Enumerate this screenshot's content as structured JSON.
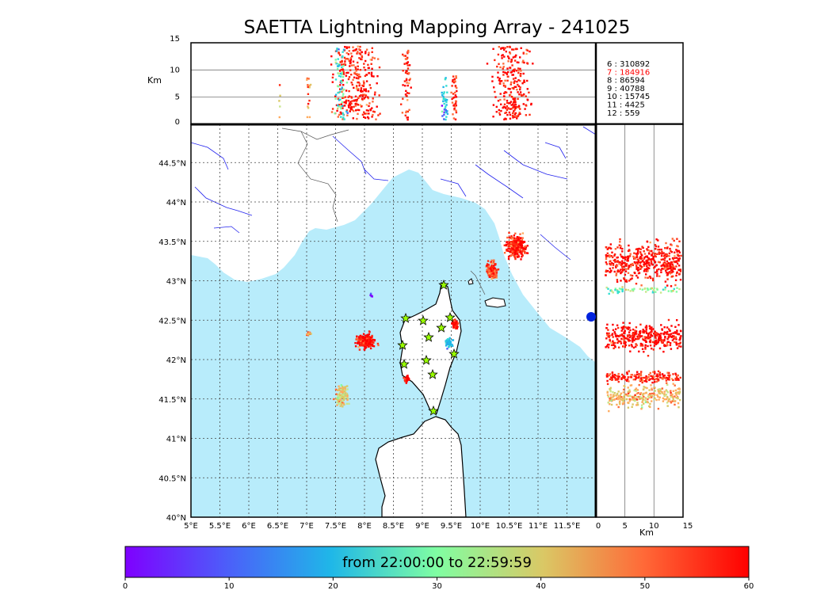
{
  "title": "SAETTA Lightning Mapping Array - 241025",
  "top_panel": {
    "ylabel": "Km",
    "yticks": [
      "0",
      "5",
      "10",
      "15"
    ],
    "counts": [
      {
        "label": " 6  :   310892",
        "color": "#000000"
      },
      {
        "label": " 7  :   184916",
        "color": "#ff0000"
      },
      {
        "label": " 8  :     86594",
        "color": "#000000"
      },
      {
        "label": " 9  :     40788",
        "color": "#000000"
      },
      {
        "label": "10  :     15745",
        "color": "#000000"
      },
      {
        "label": "11  :       4425",
        "color": "#000000"
      },
      {
        "label": "12  :         559",
        "color": "#000000"
      }
    ]
  },
  "map": {
    "lon_ticks": [
      "5°E",
      "5.5°E",
      "6°E",
      "6.5°E",
      "7°E",
      "7.5°E",
      "8°E",
      "8.5°E",
      "9°E",
      "9.5°E",
      "10°E",
      "10.5°E",
      "11°E",
      "11.5°E"
    ],
    "lat_ticks": [
      "40°N",
      "40.5°N",
      "41°N",
      "41.5°N",
      "42°N",
      "42.5°N",
      "43°N",
      "43.5°N",
      "44°N",
      "44.5°N"
    ],
    "sea_color": "#b8ecfb",
    "station_color": "#99ff00"
  },
  "right_panel": {
    "xlabel": "Km",
    "xticks": [
      "0",
      "5",
      "10",
      "15"
    ]
  },
  "colorbar": {
    "label": "from 22:00:00 to 22:59:59",
    "ticks": [
      "0",
      "10",
      "20",
      "30",
      "40",
      "50",
      "60"
    ]
  }
}
